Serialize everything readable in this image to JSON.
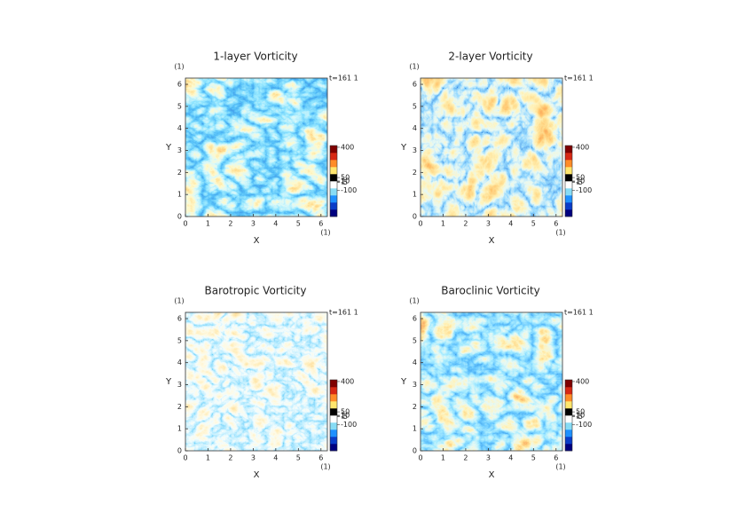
{
  "chart_data": [
    {
      "type": "heatmap",
      "title": "1-layer Vorticity",
      "xlabel": "X",
      "ylabel": "Y",
      "xunit": "(1)",
      "yunit": "(1)",
      "time_label": "t=161 1",
      "xlim": [
        0,
        6.2832
      ],
      "ylim": [
        0,
        6.2832
      ],
      "xticks": [
        0,
        1,
        2,
        3,
        4,
        5,
        6
      ],
      "yticks": [
        0,
        1,
        2,
        3,
        4,
        5,
        6
      ],
      "colorbar": {
        "clim": [
          -400,
          420
        ],
        "ticks": [
          400,
          50,
          10,
          1,
          -5,
          -100
        ],
        "colors": [
          "#00007f",
          "#0a3cc8",
          "#1e90ff",
          "#87dcf5",
          "#ffffff",
          "#000000",
          "#ffe66e",
          "#ff8c28",
          "#d72814",
          "#7f0000"
        ]
      }
    },
    {
      "type": "heatmap",
      "title": "2-layer Vorticity",
      "xlabel": "X",
      "ylabel": "Y",
      "xunit": "(1)",
      "yunit": "(1)",
      "time_label": "t=161 1",
      "xlim": [
        0,
        6.2832
      ],
      "ylim": [
        0,
        6.2832
      ],
      "xticks": [
        0,
        1,
        2,
        3,
        4,
        5,
        6
      ],
      "yticks": [
        0,
        1,
        2,
        3,
        4,
        5,
        6
      ],
      "colorbar": {
        "clim": [
          -400,
          420
        ],
        "ticks": [
          400,
          50,
          10,
          1,
          -5,
          -100
        ],
        "colors": [
          "#00007f",
          "#0a3cc8",
          "#1e90ff",
          "#87dcf5",
          "#ffffff",
          "#000000",
          "#ffe66e",
          "#ff8c28",
          "#d72814",
          "#7f0000"
        ]
      }
    },
    {
      "type": "heatmap",
      "title": "Barotropic Vorticity",
      "xlabel": "X",
      "ylabel": "Y",
      "xunit": "(1)",
      "yunit": "(1)",
      "time_label": "t=161 1",
      "xlim": [
        0,
        6.2832
      ],
      "ylim": [
        0,
        6.2832
      ],
      "xticks": [
        0,
        1,
        2,
        3,
        4,
        5,
        6
      ],
      "yticks": [
        0,
        1,
        2,
        3,
        4,
        5,
        6
      ],
      "colorbar": {
        "clim": [
          -400,
          420
        ],
        "ticks": [
          400,
          50,
          10,
          1,
          -5,
          -100
        ],
        "colors": [
          "#00007f",
          "#0a3cc8",
          "#1e90ff",
          "#87dcf5",
          "#ffffff",
          "#000000",
          "#ffe66e",
          "#ff8c28",
          "#d72814",
          "#7f0000"
        ]
      }
    },
    {
      "type": "heatmap",
      "title": "Baroclinic Vorticity",
      "xlabel": "X",
      "ylabel": "Y",
      "xunit": "(1)",
      "yunit": "(1)",
      "time_label": "t=161 1",
      "xlim": [
        0,
        6.2832
      ],
      "ylim": [
        0,
        6.2832
      ],
      "xticks": [
        0,
        1,
        2,
        3,
        4,
        5,
        6
      ],
      "yticks": [
        0,
        1,
        2,
        3,
        4,
        5,
        6
      ],
      "colorbar": {
        "clim": [
          -400,
          420
        ],
        "ticks": [
          400,
          50,
          10,
          1,
          -5,
          -100
        ],
        "colors": [
          "#00007f",
          "#0a3cc8",
          "#1e90ff",
          "#87dcf5",
          "#ffffff",
          "#000000",
          "#ffe66e",
          "#ff8c28",
          "#d72814",
          "#7f0000"
        ]
      }
    }
  ]
}
